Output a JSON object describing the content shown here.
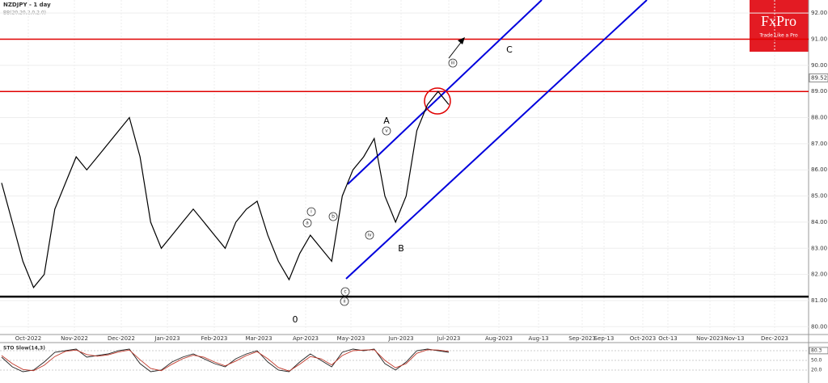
{
  "chart_data": {
    "type": "line",
    "title": "NZDJPY - 1 day",
    "indicator_label": "BB(20,20,2,0,2.0)",
    "logo": {
      "brand": "FxPro",
      "tagline": "Trade Like a Pro"
    },
    "x_labels": [
      "Oct-2022",
      "Nov-2022",
      "Dec-2022",
      "Jan-2023",
      "Feb-2023",
      "Mar-2023",
      "Apr-2023",
      "May-2023",
      "Jun-2023",
      "Jul-2023",
      "Aug-2023",
      "Aug-13",
      "Sep-2023",
      "Sep-13",
      "Oct-2023",
      "Oct-13",
      "Nov-2023",
      "Nov-13",
      "Dec-2023"
    ],
    "series": [
      {
        "name": "NZDJPY",
        "color": "#000000",
        "values": [
          85.5,
          84.0,
          82.5,
          81.5,
          82.0,
          84.5,
          85.5,
          86.5,
          86.0,
          86.5,
          87.0,
          87.5,
          88.0,
          86.5,
          84.0,
          83.0,
          83.5,
          84.0,
          84.5,
          84.0,
          83.5,
          83.0,
          84.0,
          84.5,
          84.8,
          83.5,
          82.5,
          81.8,
          82.8,
          83.5,
          83.0,
          82.5,
          85.0,
          86.0,
          86.5,
          87.2,
          85.0,
          84.0,
          85.0,
          87.5,
          88.5,
          89.0,
          88.5
        ]
      }
    ],
    "ylim": [
      79.7,
      92.5
    ],
    "yticks": [
      {
        "value": 92,
        "label": "92.00"
      },
      {
        "value": 91,
        "label": "91.00"
      },
      {
        "value": 90,
        "label": "90.00"
      },
      {
        "value": 89,
        "label": "89.00"
      },
      {
        "value": 88,
        "label": "88.00"
      },
      {
        "value": 87,
        "label": "87.00"
      },
      {
        "value": 86,
        "label": "86.00"
      },
      {
        "value": 85,
        "label": "85.00"
      },
      {
        "value": 84,
        "label": "84.00"
      },
      {
        "value": 83,
        "label": "83.00"
      },
      {
        "value": 82,
        "label": "82.00"
      },
      {
        "value": 81,
        "label": "81.00"
      },
      {
        "value": 80,
        "label": "80.00"
      }
    ],
    "last_price": {
      "value": 89.52,
      "label": "89.52"
    },
    "resistance_levels": [
      91,
      89
    ],
    "resistance_color": "#e00000",
    "support_level": 81.15,
    "channel_color": "#0000dd",
    "annotations": [
      "0",
      "A",
      "B",
      "C",
      "i",
      "ii",
      "iii",
      "iv",
      "v",
      "a",
      "b",
      "c"
    ],
    "oscillator": {
      "title": "STO Slow(14,3)",
      "ylim": [
        0,
        100
      ],
      "yticks": [
        {
          "value": 80,
          "label": "80.0"
        },
        {
          "value": 50,
          "label": "50.0"
        },
        {
          "value": 20,
          "label": "20.0"
        }
      ],
      "last": {
        "value": 80.3,
        "label": "80.3"
      },
      "series": [
        {
          "name": "%K",
          "color": "#222222",
          "values": [
            60,
            30,
            15,
            20,
            45,
            75,
            80,
            85,
            60,
            65,
            70,
            80,
            85,
            40,
            15,
            20,
            45,
            60,
            70,
            55,
            40,
            30,
            55,
            70,
            80,
            45,
            20,
            15,
            45,
            70,
            50,
            30,
            75,
            85,
            80,
            85,
            40,
            20,
            45,
            80,
            85,
            80,
            75
          ]
        },
        {
          "name": "%D",
          "color": "#c0392b",
          "values": [
            65,
            40,
            22,
            18,
            35,
            62,
            78,
            82,
            68,
            63,
            67,
            76,
            82,
            52,
            25,
            18,
            38,
            55,
            66,
            60,
            45,
            33,
            48,
            65,
            77,
            55,
            28,
            17,
            38,
            62,
            55,
            36,
            65,
            80,
            82,
            83,
            50,
            27,
            40,
            72,
            83,
            82,
            78
          ]
        }
      ]
    }
  }
}
